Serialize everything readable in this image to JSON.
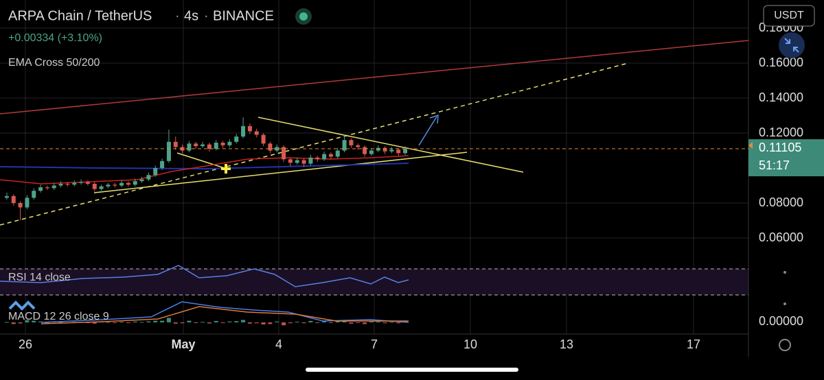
{
  "header": {
    "pair": "ARPA Chain / TetherUS",
    "interval": "4s",
    "exchange": "BINANCE",
    "change": "+0.00334 (+3.10%)",
    "indicator": "EMA Cross 50/200"
  },
  "currency_button": "USDT",
  "price_axis": {
    "ticks": [
      {
        "value": 0.18,
        "label": "0.18000"
      },
      {
        "value": 0.16,
        "label": "0.16000"
      },
      {
        "value": 0.14,
        "label": "0.14000"
      },
      {
        "value": 0.12,
        "label": "0.12000"
      },
      {
        "value": 0.08,
        "label": "0.08000"
      },
      {
        "value": 0.06,
        "label": "0.06000"
      }
    ]
  },
  "current_price": {
    "value": 0.11105,
    "label": "0.11105",
    "countdown": "51:17"
  },
  "rsi": {
    "label": "RSI 14 close"
  },
  "macd": {
    "label": "MACD 12 26 close 9",
    "zero": "0.00000"
  },
  "dates": [
    "26",
    "May",
    "4",
    "7",
    "10",
    "13",
    "17"
  ],
  "candles": [
    [
      0.083,
      0.086,
      0.082,
      0.084
    ],
    [
      0.084,
      0.085,
      0.0785,
      0.08
    ],
    [
      0.08,
      0.081,
      0.07,
      0.0775
    ],
    [
      0.0775,
      0.0845,
      0.0765,
      0.083
    ],
    [
      0.083,
      0.0885,
      0.082,
      0.087
    ],
    [
      0.087,
      0.0905,
      0.086,
      0.089
    ],
    [
      0.089,
      0.09,
      0.0875,
      0.0885
    ],
    [
      0.0885,
      0.0915,
      0.0875,
      0.09
    ],
    [
      0.09,
      0.0925,
      0.089,
      0.091
    ],
    [
      0.091,
      0.092,
      0.0895,
      0.0905
    ],
    [
      0.0905,
      0.093,
      0.0895,
      0.0915
    ],
    [
      0.0915,
      0.0935,
      0.0905,
      0.092
    ],
    [
      0.092,
      0.093,
      0.09,
      0.091
    ],
    [
      0.091,
      0.092,
      0.0865,
      0.088
    ],
    [
      0.088,
      0.0905,
      0.087,
      0.0895
    ],
    [
      0.0895,
      0.0915,
      0.0885,
      0.0905
    ],
    [
      0.0905,
      0.0915,
      0.089,
      0.09
    ],
    [
      0.09,
      0.093,
      0.089,
      0.0915
    ],
    [
      0.0915,
      0.0925,
      0.0895,
      0.0905
    ],
    [
      0.0905,
      0.094,
      0.0895,
      0.0925
    ],
    [
      0.0925,
      0.095,
      0.0915,
      0.0935
    ],
    [
      0.0935,
      0.0975,
      0.0925,
      0.096
    ],
    [
      0.096,
      0.1015,
      0.095,
      0.1
    ],
    [
      0.1,
      0.1055,
      0.099,
      0.104
    ],
    [
      0.104,
      0.122,
      0.103,
      0.115
    ],
    [
      0.115,
      0.118,
      0.1105,
      0.112
    ],
    [
      0.112,
      0.1135,
      0.1085,
      0.11
    ],
    [
      0.11,
      0.1155,
      0.109,
      0.114
    ],
    [
      0.114,
      0.115,
      0.111,
      0.1125
    ],
    [
      0.1125,
      0.115,
      0.1115,
      0.1135
    ],
    [
      0.1135,
      0.1145,
      0.1095,
      0.111
    ],
    [
      0.111,
      0.116,
      0.11,
      0.1145
    ],
    [
      0.1145,
      0.1155,
      0.1115,
      0.113
    ],
    [
      0.113,
      0.1165,
      0.112,
      0.115
    ],
    [
      0.115,
      0.1195,
      0.114,
      0.118
    ],
    [
      0.118,
      0.129,
      0.117,
      0.124
    ],
    [
      0.124,
      0.1255,
      0.1195,
      0.121
    ],
    [
      0.121,
      0.1225,
      0.1175,
      0.119
    ],
    [
      0.119,
      0.12,
      0.1125,
      0.114
    ],
    [
      0.114,
      0.115,
      0.1085,
      0.11
    ],
    [
      0.11,
      0.1135,
      0.109,
      0.112
    ],
    [
      0.112,
      0.113,
      0.1035,
      0.105
    ],
    [
      0.105,
      0.106,
      0.101,
      0.103
    ],
    [
      0.103,
      0.106,
      0.102,
      0.1045
    ],
    [
      0.1045,
      0.1055,
      0.1005,
      0.1025
    ],
    [
      0.1025,
      0.1075,
      0.1015,
      0.106
    ],
    [
      0.106,
      0.107,
      0.1035,
      0.105
    ],
    [
      0.105,
      0.1095,
      0.104,
      0.108
    ],
    [
      0.108,
      0.109,
      0.105,
      0.1065
    ],
    [
      0.1065,
      0.1115,
      0.1055,
      0.11
    ],
    [
      0.11,
      0.119,
      0.109,
      0.116
    ],
    [
      0.116,
      0.117,
      0.1115,
      0.113
    ],
    [
      0.113,
      0.114,
      0.1105,
      0.112
    ],
    [
      0.112,
      0.113,
      0.1065,
      0.108
    ],
    [
      0.108,
      0.1115,
      0.107,
      0.11
    ],
    [
      0.11,
      0.113,
      0.109,
      0.1115
    ],
    [
      0.1115,
      0.1125,
      0.108,
      0.1095
    ],
    [
      0.1095,
      0.112,
      0.1085,
      0.1105
    ],
    [
      0.1105,
      0.1115,
      0.107,
      0.1085
    ],
    [
      0.1085,
      0.1125,
      0.1075,
      0.111
    ]
  ]
}
